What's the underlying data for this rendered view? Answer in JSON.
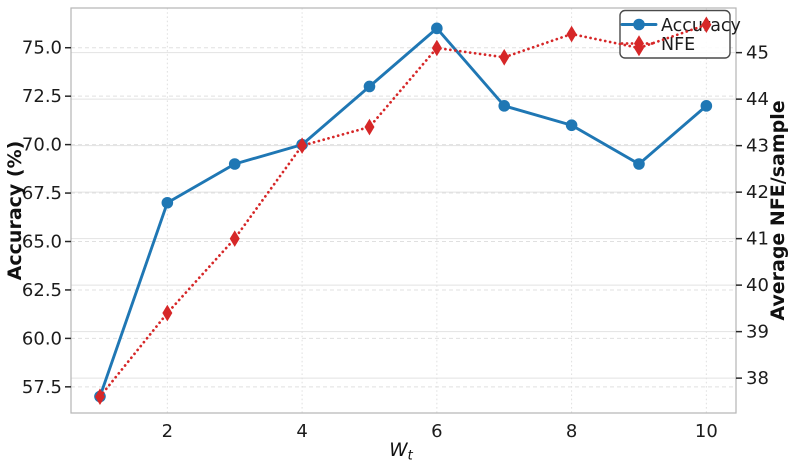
{
  "chart_data": {
    "type": "line",
    "title": "",
    "xlabel_base": "W",
    "xlabel_sub": "t",
    "x": [
      1,
      2,
      3,
      4,
      5,
      6,
      7,
      8,
      9,
      10
    ],
    "series": [
      {
        "name": "Accuracy",
        "axis": "left",
        "color": "#1f77b4",
        "line_style": "solid",
        "marker": "circle",
        "values": [
          57,
          67,
          69,
          70,
          73,
          76,
          72,
          71,
          69,
          72
        ]
      },
      {
        "name": "NFE",
        "axis": "right",
        "color": "#d62728",
        "line_style": "dotted",
        "marker": "thin-diamond",
        "values": [
          37.6,
          39.4,
          41.0,
          43.0,
          43.4,
          45.1,
          44.9,
          45.4,
          45.1,
          45.6
        ]
      }
    ],
    "left_axis": {
      "label": "Accuracy (%)",
      "tick_labels": [
        "57.5",
        "60.0",
        "62.5",
        "65.0",
        "67.5",
        "70.0",
        "72.5",
        "75.0"
      ],
      "lim": [
        56.15,
        77.05
      ],
      "grid_style": "dashed"
    },
    "right_axis": {
      "label": "Average NFE/sample",
      "tick_labels": [
        "38",
        "39",
        "40",
        "41",
        "42",
        "43",
        "44",
        "45"
      ],
      "lim": [
        37.25,
        45.96
      ],
      "grid_style": "solid"
    },
    "x_axis": {
      "tick_labels": [
        "2",
        "4",
        "6",
        "8",
        "10"
      ],
      "tick_values": [
        2,
        4,
        6,
        8,
        10
      ],
      "lim": [
        0.57,
        10.44
      ],
      "grid_style": "dashed"
    },
    "legend": {
      "position": "upper-right",
      "entries": [
        "Accuracy",
        "NFE"
      ]
    }
  },
  "style": {
    "background": "#ffffff",
    "accuracy_color": "#1f77b4",
    "nfe_color": "#d62728",
    "grid_solid_color": "#e2e2e2",
    "grid_dashed_color": "#e0e0e0",
    "spine_color": "#b5b5b5",
    "tick_mark_color": "#262626",
    "text_color": "#1c1c1c",
    "legend_border_color": "#4a4a4a",
    "legend_fill": "#ffffff"
  }
}
